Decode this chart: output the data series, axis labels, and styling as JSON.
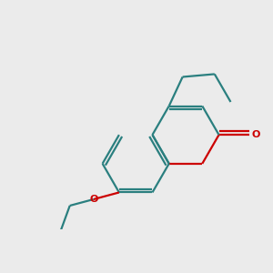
{
  "bg_color": "#ebebeb",
  "bond_color": "#2a7f7f",
  "oxygen_color": "#cc0000",
  "fluorine_color": "#cc00cc",
  "line_width": 1.6,
  "fig_size": [
    3.0,
    3.0
  ],
  "dpi": 100
}
